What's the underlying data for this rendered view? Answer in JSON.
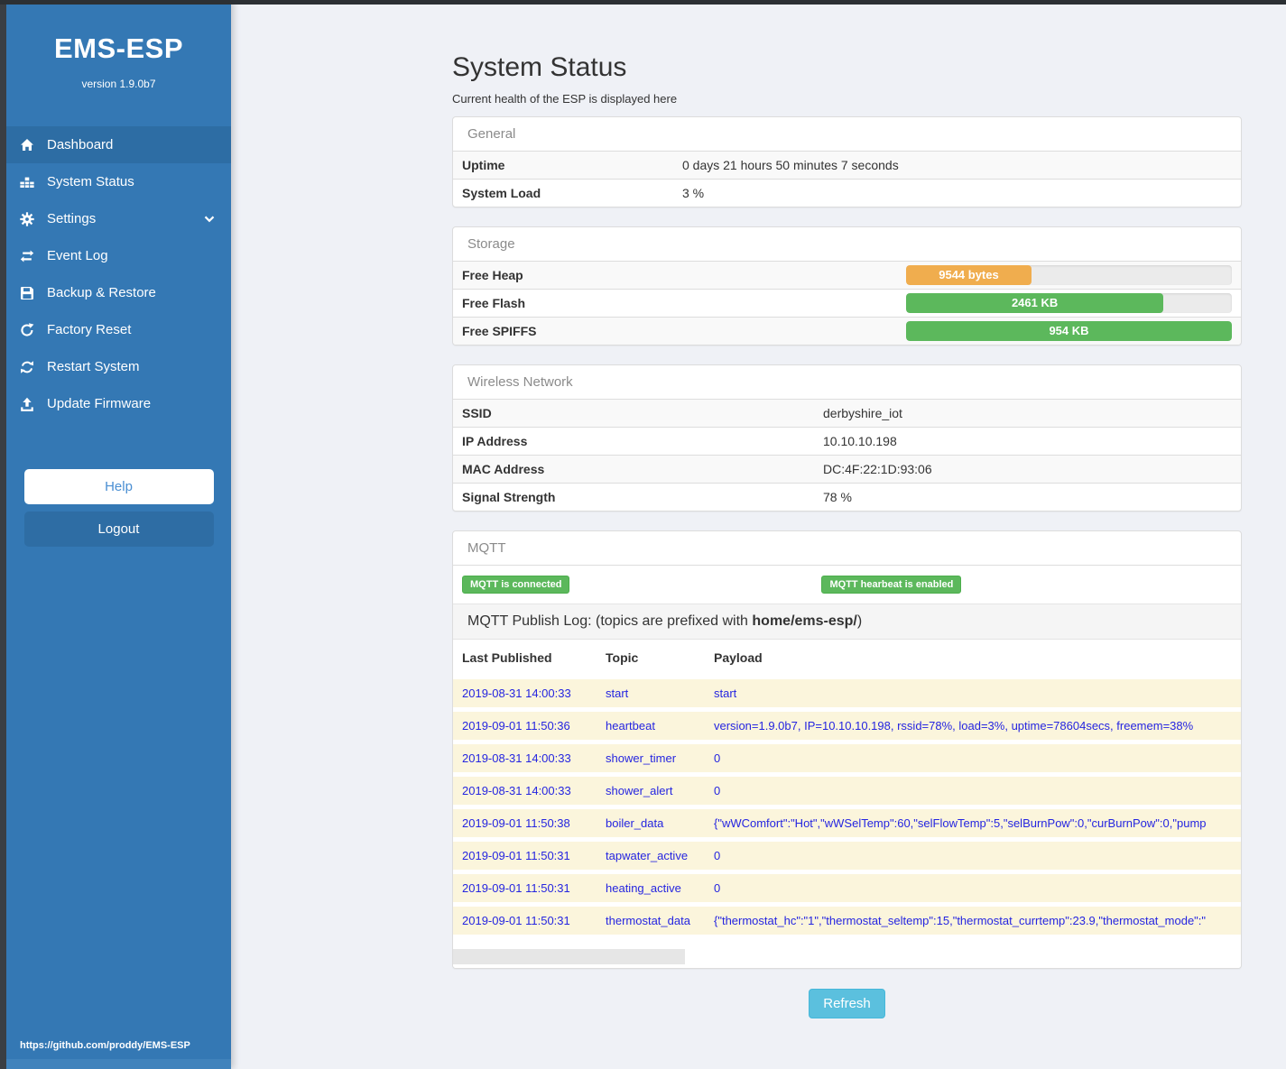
{
  "sidebar": {
    "title": "EMS-ESP",
    "version": "version 1.9.0b7",
    "items": [
      {
        "label": "Dashboard",
        "icon": "home",
        "active": true
      },
      {
        "label": "System Status",
        "icon": "chart",
        "active": false
      },
      {
        "label": "Settings",
        "icon": "gear",
        "active": false,
        "chevron": true
      },
      {
        "label": "Event Log",
        "icon": "exchange",
        "active": false
      },
      {
        "label": "Backup & Restore",
        "icon": "save",
        "active": false
      },
      {
        "label": "Factory Reset",
        "icon": "rotate",
        "active": false
      },
      {
        "label": "Restart System",
        "icon": "refresh",
        "active": false
      },
      {
        "label": "Update Firmware",
        "icon": "upload",
        "active": false
      }
    ],
    "help_label": "Help",
    "logout_label": "Logout",
    "footer_link": "https://github.com/proddy/EMS-ESP"
  },
  "page": {
    "title": "System Status",
    "subtitle": "Current health of the ESP is displayed here",
    "refresh_label": "Refresh"
  },
  "general": {
    "heading": "General",
    "rows": [
      {
        "label": "Uptime",
        "value": "0 days 21 hours 50 minutes 7 seconds"
      },
      {
        "label": "System Load",
        "value": "3 %"
      }
    ]
  },
  "storage": {
    "heading": "Storage",
    "rows": [
      {
        "label": "Free Heap",
        "value": "9544 bytes",
        "percent": 38.5,
        "color": "#f0ad4e"
      },
      {
        "label": "Free Flash",
        "value": "2461 KB",
        "percent": 79,
        "color": "#5cb85c"
      },
      {
        "label": "Free SPIFFS",
        "value": "954 KB",
        "percent": 100,
        "color": "#5cb85c"
      }
    ]
  },
  "wireless": {
    "heading": "Wireless Network",
    "rows": [
      {
        "label": "SSID",
        "value": "derbyshire_iot"
      },
      {
        "label": "IP Address",
        "value": "10.10.10.198"
      },
      {
        "label": "MAC Address",
        "value": "DC:4F:22:1D:93:06"
      },
      {
        "label": "Signal Strength",
        "value": "78 %"
      }
    ]
  },
  "mqtt": {
    "heading": "MQTT",
    "badges": [
      "MQTT is connected",
      "MQTT hearbeat is enabled"
    ],
    "publish_log_prefix": "MQTT Publish Log: (topics are prefixed with ",
    "publish_log_bold": "home/ems-esp/",
    "publish_log_suffix": ")",
    "columns": [
      "Last Published",
      "Topic",
      "Payload"
    ],
    "rows": [
      {
        "date": "2019-08-31 14:00:33",
        "topic": "start",
        "payload": "start"
      },
      {
        "date": "2019-09-01 11:50:36",
        "topic": "heartbeat",
        "payload": "version=1.9.0b7, IP=10.10.10.198, rssid=78%, load=3%, uptime=78604secs, freemem=38%"
      },
      {
        "date": "2019-08-31 14:00:33",
        "topic": "shower_timer",
        "payload": "0"
      },
      {
        "date": "2019-08-31 14:00:33",
        "topic": "shower_alert",
        "payload": "0"
      },
      {
        "date": "2019-09-01 11:50:38",
        "topic": "boiler_data",
        "payload": "{\"wWComfort\":\"Hot\",\"wWSelTemp\":60,\"selFlowTemp\":5,\"selBurnPow\":0,\"curBurnPow\":0,\"pump"
      },
      {
        "date": "2019-09-01 11:50:31",
        "topic": "tapwater_active",
        "payload": "0"
      },
      {
        "date": "2019-09-01 11:50:31",
        "topic": "heating_active",
        "payload": "0"
      },
      {
        "date": "2019-09-01 11:50:31",
        "topic": "thermostat_data",
        "payload": "{\"thermostat_hc\":\"1\",\"thermostat_seltemp\":15,\"thermostat_currtemp\":23.9,\"thermostat_mode\":\""
      }
    ]
  },
  "colors": {
    "sidebar_blue": "#3478b4",
    "active_item_blue": "#2d6da4",
    "success_green": "#5cb85c",
    "warning_orange": "#f0ad4e",
    "info_blue": "#5bc0de",
    "log_text_blue": "#2525e0"
  }
}
